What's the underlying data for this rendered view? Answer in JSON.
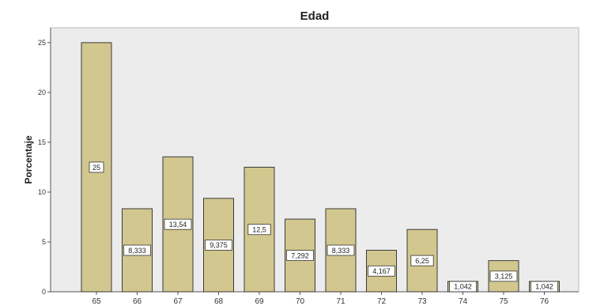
{
  "chart_data": {
    "type": "bar",
    "title": "Edad",
    "xlabel": "",
    "ylabel": "Porcentaje",
    "categories": [
      "65",
      "66",
      "67",
      "68",
      "69",
      "70",
      "71",
      "72",
      "73",
      "74",
      "75",
      "76"
    ],
    "values": [
      25,
      8.333,
      13.54,
      9.375,
      12.5,
      7.292,
      8.333,
      4.167,
      6.25,
      1.042,
      3.125,
      1.042
    ],
    "data_labels": [
      "25",
      "8,333",
      "13,54",
      "9,375",
      "12,5",
      "7,292",
      "8,333",
      "4,167",
      "6,25",
      "1,042",
      "3,125",
      "1,042"
    ],
    "ylim": [
      0,
      26.5
    ],
    "yticks": [
      0,
      5,
      10,
      15,
      20,
      25
    ],
    "grid": false,
    "legend": "none",
    "colors": {
      "bar_fill": "#d2c78f",
      "bar_stroke": "#3a3a3a",
      "plot_background": "#ececec",
      "page_background": "#ffffff",
      "axis": "#555555"
    }
  }
}
